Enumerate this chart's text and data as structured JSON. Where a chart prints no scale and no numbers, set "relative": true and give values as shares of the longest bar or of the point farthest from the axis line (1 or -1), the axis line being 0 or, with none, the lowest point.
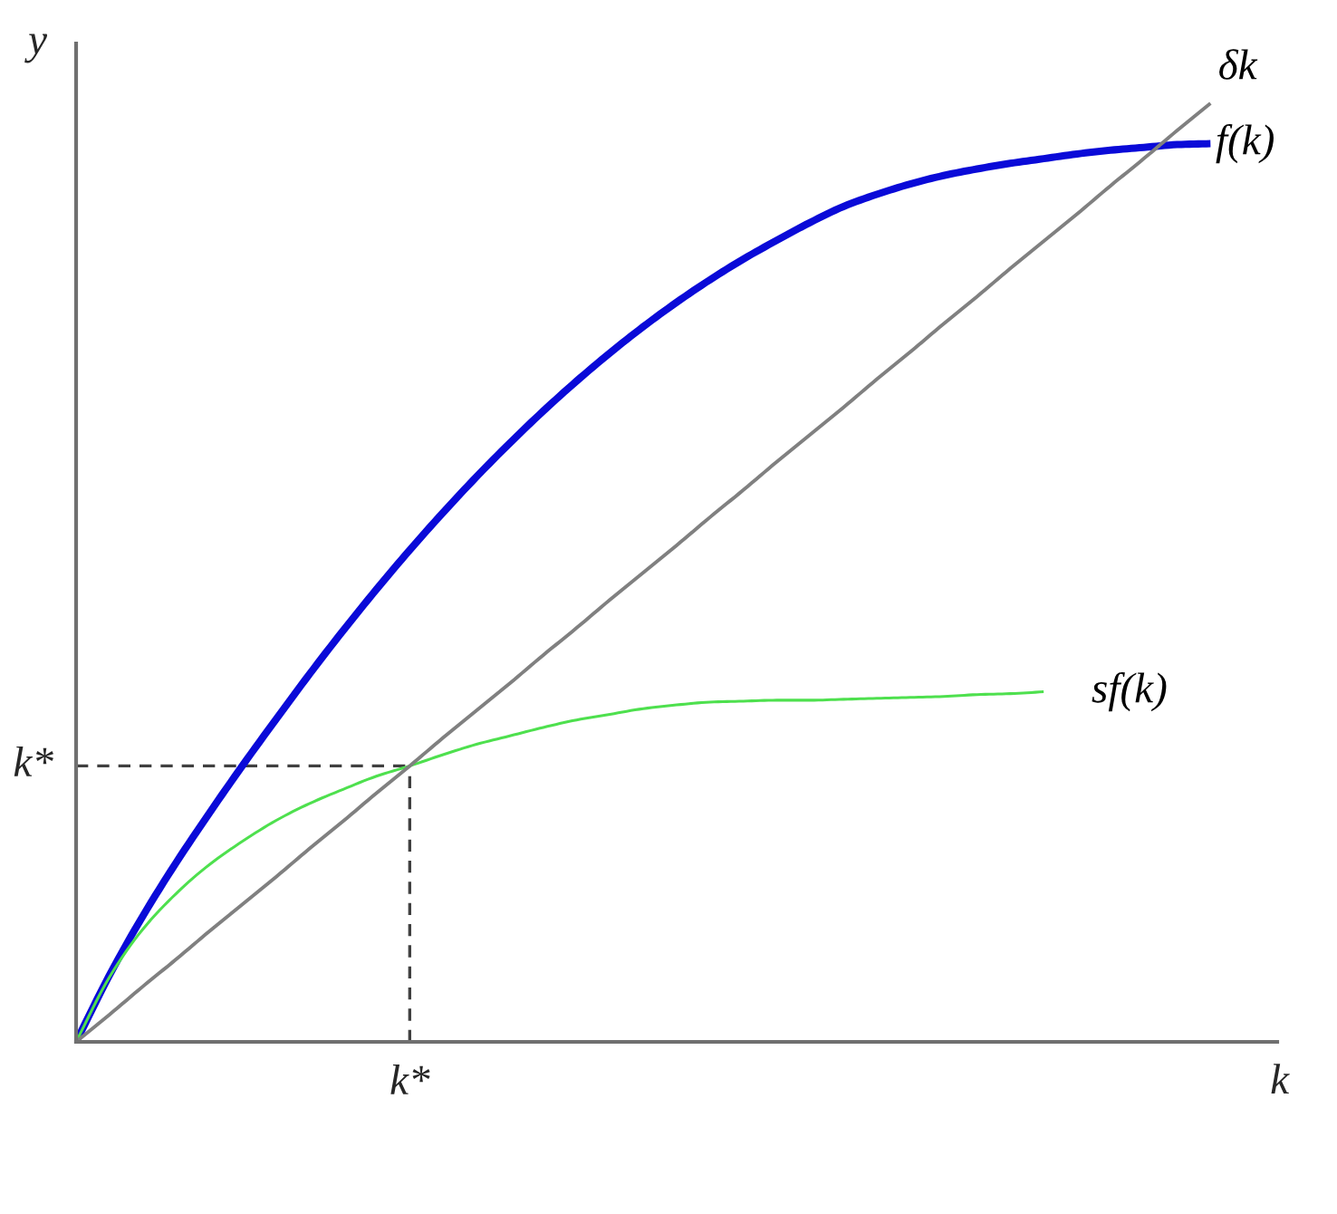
{
  "chart_data": {
    "type": "line",
    "relative": true,
    "xlabel": "k",
    "ylabel": "y",
    "categories": [
      null,
      null,
      null,
      null,
      null,
      null,
      null,
      null,
      null,
      null,
      null,
      null,
      null,
      null,
      null,
      null,
      null,
      null,
      null,
      null,
      null,
      null,
      null,
      null,
      null,
      null,
      null,
      null,
      null,
      null,
      null,
      null,
      null,
      null,
      null,
      null,
      null
    ],
    "series": [
      {
        "name": "f(k)",
        "color": "#0a0ad8",
        "values": [
          0,
          0.071,
          0.134,
          0.191,
          0.244,
          0.295,
          0.344,
          0.392,
          0.438,
          0.482,
          0.524,
          0.564,
          0.602,
          0.638,
          0.672,
          0.704,
          0.734,
          0.762,
          0.788,
          0.812,
          0.834,
          0.854,
          0.873,
          0.89,
          0.903,
          0.914,
          0.923,
          0.93,
          0.936,
          0.941,
          0.946,
          0.95,
          0.953,
          0.956,
          0.957,
          null,
          null
        ]
      },
      {
        "name": "sf(k)",
        "color": "#4ee04e",
        "values": [
          0,
          0.069,
          0.12,
          0.158,
          0.189,
          0.214,
          0.236,
          0.254,
          0.269,
          0.283,
          0.294,
          0.306,
          0.317,
          0.326,
          0.335,
          0.343,
          0.349,
          0.355,
          0.359,
          0.362,
          0.363,
          0.364,
          0.364,
          0.365,
          0.366,
          0.367,
          0.368,
          0.37,
          0.371,
          0.373,
          null,
          null,
          null,
          null,
          null,
          null,
          null
        ]
      },
      {
        "name": "δk",
        "color": "#808080",
        "values": [
          0,
          0.029,
          0.059,
          0.088,
          0.118,
          0.147,
          0.176,
          0.206,
          0.235,
          0.265,
          0.294,
          0.324,
          0.353,
          0.382,
          0.412,
          0.441,
          0.471,
          0.5,
          0.529,
          0.559,
          0.588,
          0.618,
          0.647,
          0.676,
          0.706,
          0.735,
          0.765,
          0.794,
          0.824,
          0.853,
          0.882,
          0.912,
          0.941,
          0.971,
          1,
          null,
          null
        ]
      }
    ],
    "ref_lines": [
      {
        "axis": "y",
        "value": 0.294,
        "label": "k*",
        "color": "#404040",
        "line_style": "dashed"
      }
    ],
    "annotations": [
      "k*"
    ]
  }
}
